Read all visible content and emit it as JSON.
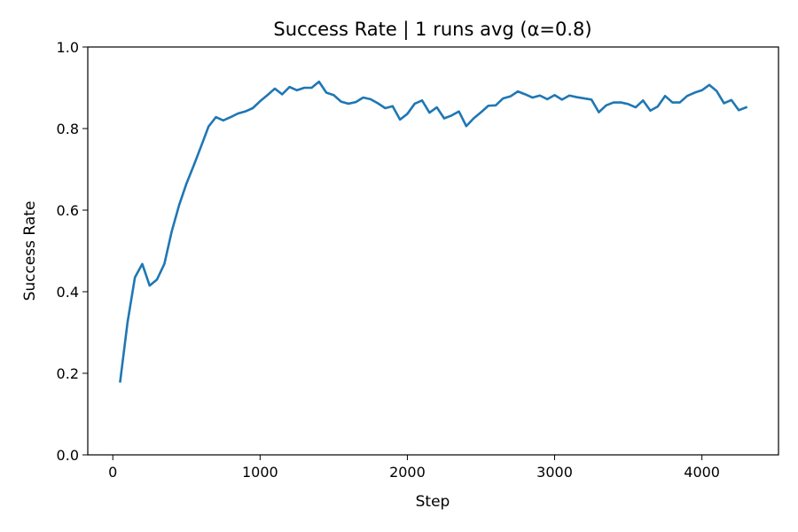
{
  "chart_data": {
    "type": "line",
    "title": "Success Rate | 1 runs avg  (α=0.8)",
    "xlabel": "Step",
    "ylabel": "Success Rate",
    "xlim": [
      -170,
      4520
    ],
    "ylim": [
      0.0,
      1.0
    ],
    "xticks": [
      0,
      1000,
      2000,
      3000,
      4000
    ],
    "xtick_labels": [
      "0",
      "1000",
      "2000",
      "3000",
      "4000"
    ],
    "yticks": [
      0.0,
      0.2,
      0.4,
      0.6,
      0.8,
      1.0
    ],
    "ytick_labels": [
      "0.0",
      "0.2",
      "0.4",
      "0.6",
      "0.8",
      "1.0"
    ],
    "grid": false,
    "legend": "none",
    "series": [
      {
        "color": "#1f77b4",
        "x": [
          50,
          100,
          150,
          200,
          250,
          300,
          350,
          400,
          450,
          500,
          550,
          600,
          650,
          700,
          750,
          800,
          850,
          900,
          950,
          1000,
          1050,
          1100,
          1150,
          1200,
          1250,
          1300,
          1350,
          1400,
          1450,
          1500,
          1550,
          1600,
          1650,
          1700,
          1750,
          1800,
          1850,
          1900,
          1950,
          2000,
          2050,
          2100,
          2150,
          2200,
          2250,
          2300,
          2350,
          2400,
          2450,
          2500,
          2550,
          2600,
          2650,
          2700,
          2750,
          2800,
          2850,
          2900,
          2950,
          3000,
          3050,
          3100,
          3150,
          3200,
          3250,
          3300,
          3350,
          3400,
          3450,
          3500,
          3550,
          3600,
          3650,
          3700,
          3750,
          3800,
          3850,
          3900,
          3950,
          4000,
          4050,
          4100,
          4150,
          4200,
          4250,
          4300
        ],
        "y": [
          0.18,
          0.325,
          0.435,
          0.468,
          0.415,
          0.43,
          0.468,
          0.548,
          0.612,
          0.665,
          0.71,
          0.757,
          0.805,
          0.828,
          0.82,
          0.828,
          0.837,
          0.842,
          0.85,
          0.867,
          0.882,
          0.898,
          0.884,
          0.902,
          0.894,
          0.9,
          0.9,
          0.915,
          0.888,
          0.882,
          0.866,
          0.861,
          0.865,
          0.876,
          0.872,
          0.862,
          0.85,
          0.855,
          0.822,
          0.836,
          0.861,
          0.869,
          0.839,
          0.852,
          0.825,
          0.832,
          0.842,
          0.806,
          0.825,
          0.84,
          0.856,
          0.857,
          0.874,
          0.879,
          0.891,
          0.884,
          0.876,
          0.881,
          0.872,
          0.882,
          0.871,
          0.881,
          0.877,
          0.874,
          0.871,
          0.84,
          0.857,
          0.864,
          0.864,
          0.86,
          0.852,
          0.869,
          0.844,
          0.854,
          0.88,
          0.864,
          0.864,
          0.88,
          0.888,
          0.894,
          0.907,
          0.892,
          0.862,
          0.87,
          0.845,
          0.852
        ]
      }
    ]
  }
}
